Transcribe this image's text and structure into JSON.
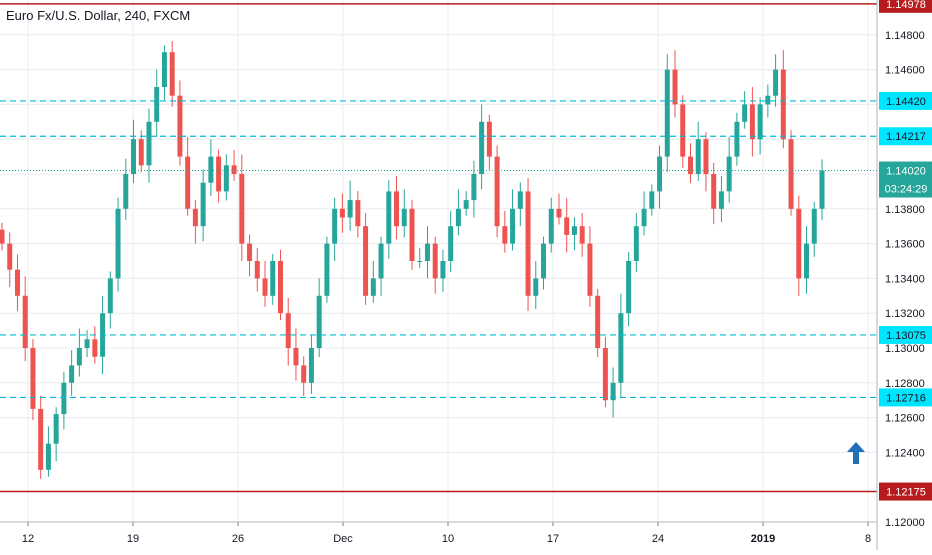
{
  "header": {
    "title": "Euro Fx/U.S. Dollar, 240, FXCM"
  },
  "colors": {
    "up": "#26a69a",
    "down": "#ef5350",
    "grid": "#e9ecf1",
    "resistance_line": "#b71c1c",
    "support_line": "#00bcd4",
    "price_line": "#26a69a",
    "arrow": "#1e6fb5"
  },
  "icons": {
    "trend_arrow": "arrow-up-icon"
  },
  "chart_data": {
    "type": "candlestick",
    "symbol": "EURUSD",
    "timeframe": "240",
    "source": "FXCM",
    "ylim": [
      1.12,
      1.15
    ],
    "y_ticks": [
      "1.14800",
      "1.14600",
      "1.14400",
      "1.14200",
      "1.14000",
      "1.13800",
      "1.13600",
      "1.13400",
      "1.13200",
      "1.13000",
      "1.12800",
      "1.12600",
      "1.12400",
      "1.12000"
    ],
    "x_ticks": [
      "12",
      "19",
      "26",
      "Dec",
      "10",
      "17",
      "24",
      "2019",
      "8"
    ],
    "x_tick_bold": "2019",
    "grid": true,
    "current_price": "1.14020",
    "countdown": "03:24:29",
    "levels": [
      {
        "value": "1.14978",
        "style": "solid",
        "color": "#b71c1c",
        "label_bg": "#b71c1c"
      },
      {
        "value": "1.14420",
        "style": "dashed",
        "color": "#00bcd4",
        "label_bg": "#00e5ff"
      },
      {
        "value": "1.14217",
        "style": "dashed",
        "color": "#00bcd4",
        "label_bg": "#00e5ff"
      },
      {
        "value": "1.13075",
        "style": "dashed",
        "color": "#00bcd4",
        "label_bg": "#00e5ff"
      },
      {
        "value": "1.12716",
        "style": "dashed",
        "color": "#00bcd4",
        "label_bg": "#00e5ff"
      },
      {
        "value": "1.12175",
        "style": "solid",
        "color": "#b71c1c",
        "label_bg": "#b71c1c"
      }
    ],
    "closes": [
      1.136,
      1.1345,
      1.133,
      1.13,
      1.1265,
      1.123,
      1.1245,
      1.1262,
      1.128,
      1.129,
      1.13,
      1.1305,
      1.1295,
      1.132,
      1.134,
      1.138,
      1.14,
      1.142,
      1.1405,
      1.143,
      1.145,
      1.147,
      1.1445,
      1.141,
      1.138,
      1.137,
      1.1395,
      1.141,
      1.139,
      1.1405,
      1.14,
      1.136,
      1.135,
      1.134,
      1.133,
      1.135,
      1.132,
      1.13,
      1.129,
      1.128,
      1.13,
      1.133,
      1.136,
      1.138,
      1.1375,
      1.1385,
      1.137,
      1.133,
      1.134,
      1.136,
      1.139,
      1.137,
      1.138,
      1.135,
      1.135,
      1.136,
      1.134,
      1.135,
      1.137,
      1.138,
      1.1385,
      1.14,
      1.143,
      1.141,
      1.137,
      1.136,
      1.138,
      1.139,
      1.133,
      1.134,
      1.136,
      1.138,
      1.1375,
      1.1365,
      1.137,
      1.136,
      1.133,
      1.13,
      1.127,
      1.128,
      1.132,
      1.135,
      1.137,
      1.138,
      1.139,
      1.141,
      1.146,
      1.144,
      1.141,
      1.14,
      1.142,
      1.14,
      1.138,
      1.139,
      1.141,
      1.143,
      1.144,
      1.142,
      1.144,
      1.1445,
      1.146,
      1.142,
      1.138,
      1.134,
      1.136,
      1.138,
      1.1402
    ]
  }
}
